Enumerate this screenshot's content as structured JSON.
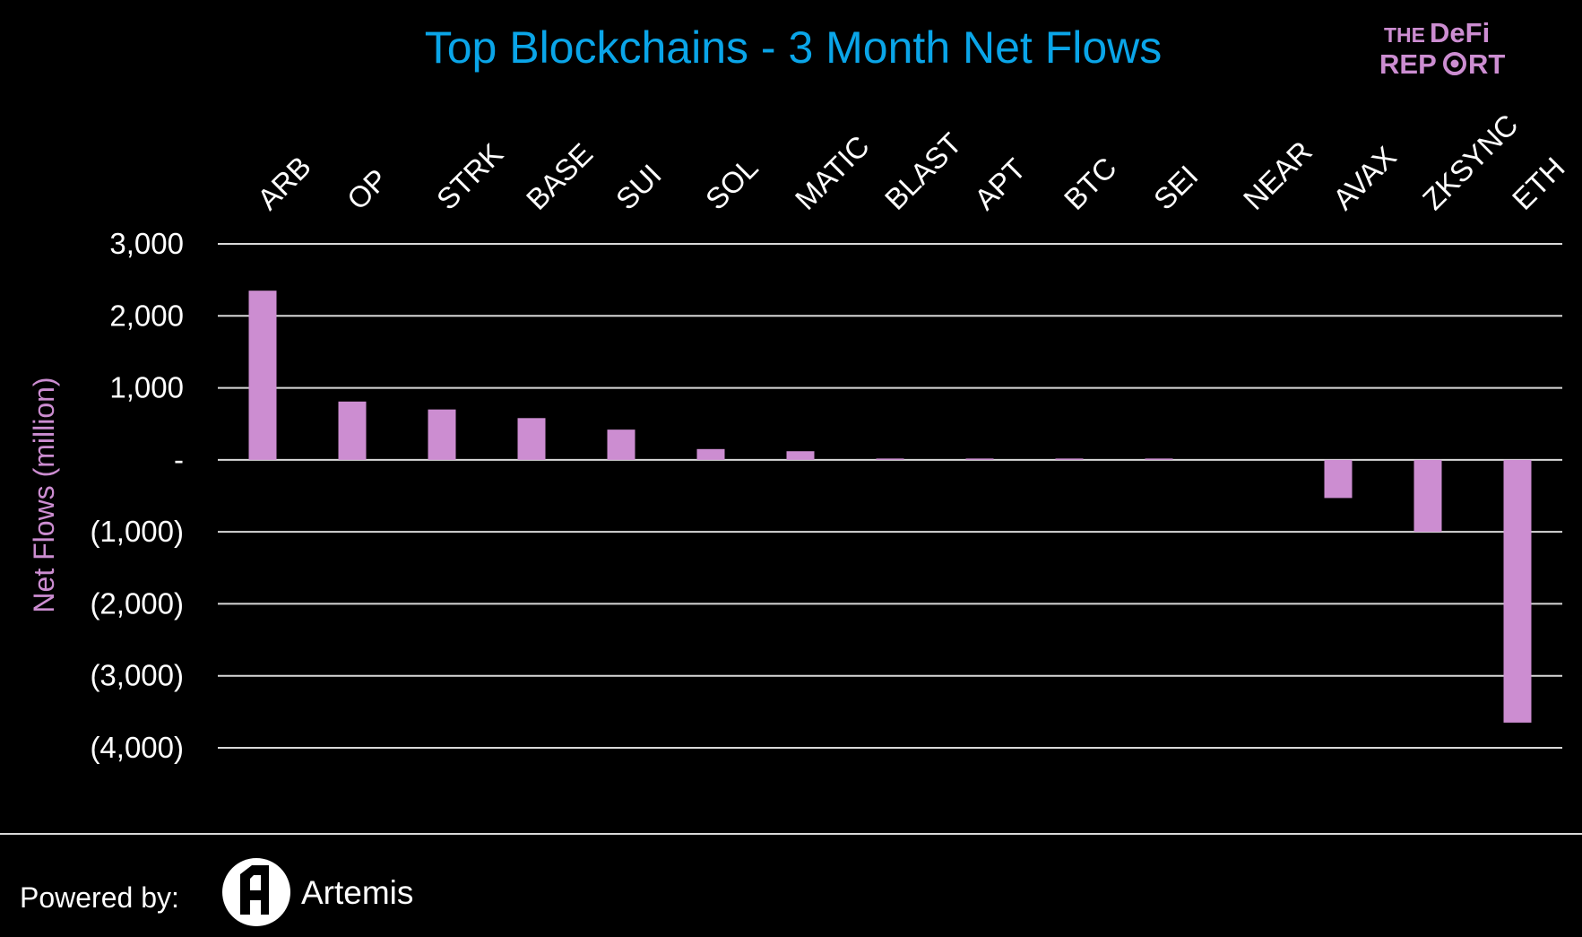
{
  "chart_data": {
    "type": "bar",
    "title": "Top Blockchains - 3 Month Net Flows",
    "ylabel": "Net Flows (million)",
    "xlabel": "",
    "categories": [
      "ARB",
      "OP",
      "STRK",
      "BASE",
      "SUI",
      "SOL",
      "MATIC",
      "BLAST",
      "APT",
      "BTC",
      "SEI",
      "NEAR",
      "AVAX",
      "ZKSYNC",
      "ETH"
    ],
    "values": [
      2350,
      810,
      700,
      580,
      420,
      150,
      120,
      10,
      8,
      6,
      5,
      0,
      -530,
      -1000,
      -3650
    ],
    "ylim": [
      -4000,
      3000
    ],
    "yticks": [
      3000,
      2000,
      1000,
      0,
      -1000,
      -2000,
      -3000,
      -4000
    ],
    "ytick_labels": [
      "3,000",
      "2,000",
      "1,000",
      "-",
      "(1,000)",
      "(2,000)",
      "(3,000)",
      "(4,000)"
    ],
    "grid": true,
    "colors": {
      "bar": "#cc8dd1",
      "title": "#0aa5e8",
      "ylabel": "#cc8dd1",
      "gridline": "#d9d9d9",
      "background": "#000000"
    }
  },
  "logo": {
    "line1_a": "THE",
    "line1_b": "DeFi",
    "line2_a": "REP",
    "line2_b": "RT",
    "icon": "target-icon",
    "color": "#cc8dd1"
  },
  "footer": {
    "powered_by": "Powered by:",
    "brand": "Artemis",
    "brand_icon": "artemis-logo-icon"
  }
}
